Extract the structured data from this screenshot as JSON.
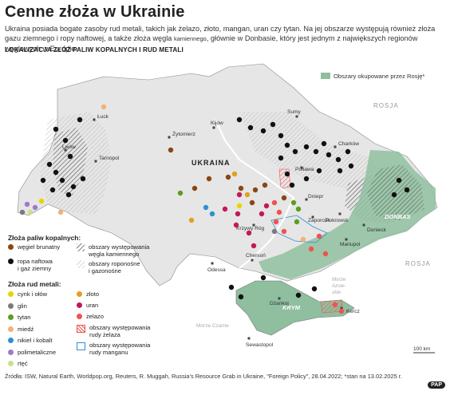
{
  "title": "Cenne złoża w Ukrainie",
  "subtitle_part1": "Ukraina posiada bogate zasoby rud metali, takich jak żelazo, złoto, mangan, uran czy tytan. Na jej obszarze występują również złoża gazu ziemnego i ropy naftowej, a także złoża węgla ",
  "subtitle_small": "kamiennego",
  "subtitle_part2": ", głównie w Donbasie, który jest jednym z największych regionów węglowych w Europie.",
  "map_label": "LOKALIZACJA ZŁÓŻ PALIW KOPALNYCH I RUD METALI",
  "occupied_legend": "Obszary okupowane przez Rosję*",
  "country_label": "UKRAINA",
  "region_labels": {
    "donbas": "DONBAS",
    "krym": "KRYM"
  },
  "neighbor_labels": [
    "ROSJA",
    "ROSJA"
  ],
  "sea_labels": {
    "black_sea": "Morze Czarne",
    "azov_line1": "Morze",
    "azov_line2": "Azow-",
    "azov_line3": "skie"
  },
  "cities": [
    {
      "name": "Łuck"
    },
    {
      "name": "Lwów"
    },
    {
      "name": "Tarnopol"
    },
    {
      "name": "Żytomierz"
    },
    {
      "name": "Kijów"
    },
    {
      "name": "Sumy"
    },
    {
      "name": "Charków"
    },
    {
      "name": "Połtawa"
    },
    {
      "name": "Dniepr"
    },
    {
      "name": "Zaporoże"
    },
    {
      "name": "Pokrowsk"
    },
    {
      "name": "Krzywy Róg"
    },
    {
      "name": "Donieck"
    },
    {
      "name": "Mariupol"
    },
    {
      "name": "Odessa"
    },
    {
      "name": "Chersoń"
    },
    {
      "name": "Dżankoj"
    },
    {
      "name": "Kercz"
    },
    {
      "name": "Sewastopol"
    }
  ],
  "legend": {
    "fuels_header": "Złoża paliw kopalnych:",
    "fuels": [
      {
        "label": "węgiel brunatny",
        "color": "#8b4513"
      },
      {
        "label": "ropa naftowa\ni gaz ziemny",
        "color": "#111111"
      }
    ],
    "areas": [
      {
        "label": "obszary występowania\nwęgla kamiennego"
      },
      {
        "label": "obszary roponośne\ni gazonośne"
      }
    ],
    "metals_header": "Złoża rud metali:",
    "metals_left": [
      {
        "label": "cynk i ołów",
        "color": "#e8d400"
      },
      {
        "label": "glin",
        "color": "#7a7a7a"
      },
      {
        "label": "tytan",
        "color": "#5a9e1e"
      },
      {
        "label": "miedź",
        "color": "#f3b178"
      },
      {
        "label": "nikiel i kobalt",
        "color": "#2f8fd0"
      },
      {
        "label": "polimetaliczne",
        "color": "#a07ac8"
      },
      {
        "label": "rtęć",
        "color": "#c8e08a"
      }
    ],
    "metals_right": [
      {
        "label": "złoto",
        "color": "#e0a020"
      },
      {
        "label": "uran",
        "color": "#c2185b"
      },
      {
        "label": "żelazo",
        "color": "#ef5350"
      },
      {
        "label": "obszary występowania\nrudy żelaza",
        "color": "#ef5350"
      },
      {
        "label": "obszary występowania\nrudy manganu",
        "color": "#2f8fd0"
      }
    ]
  },
  "scale": "100 km",
  "footer": "Źródła: ISW, Natural Earth, Worldpop.org, Reuters, R. Muggah, Russia's Resource Grab in Ukraine, \"Foreign Policy\", 28.04.2022; *stan na 13.02.2025 r.",
  "agency": "PAP",
  "colors": {
    "occupied": "#8fbf9f",
    "ukraine": "#e6e6e6",
    "hatch": "#555555",
    "sea": "#ffffff"
  }
}
